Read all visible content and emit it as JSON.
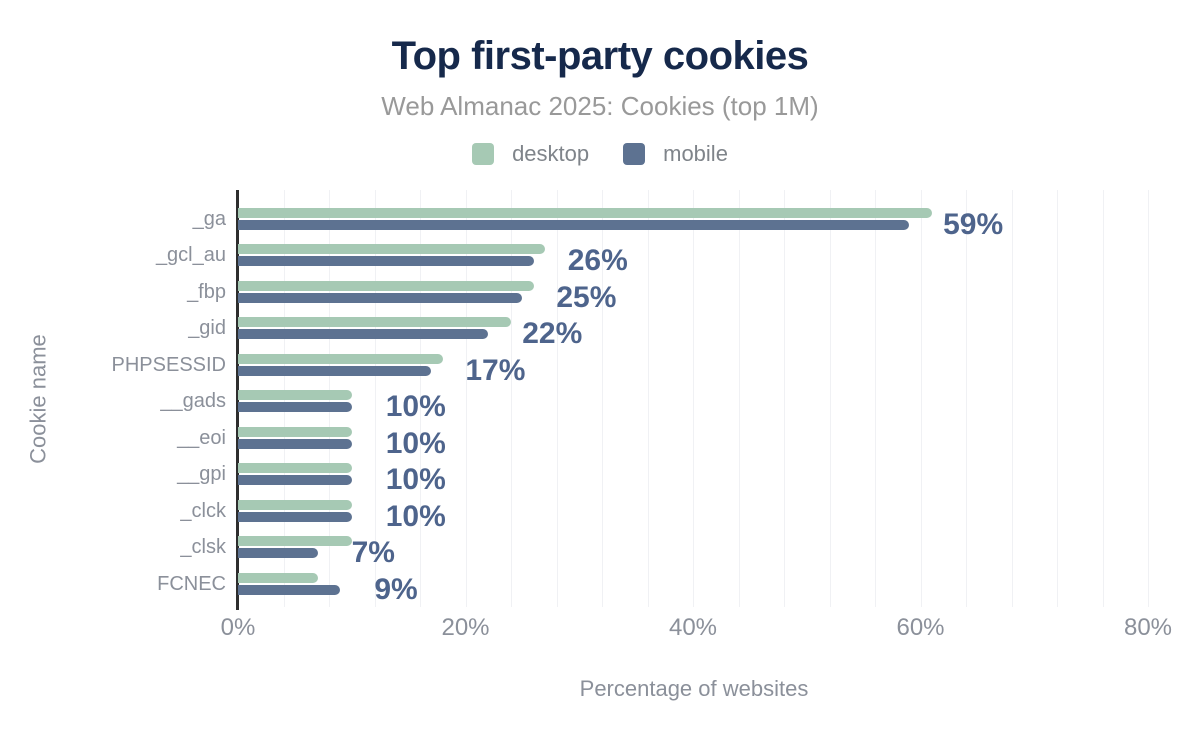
{
  "chart_data": {
    "type": "bar",
    "orientation": "horizontal",
    "title": "Top first-party cookies",
    "subtitle": "Web Almanac 2025: Cookies (top 1M)",
    "xlabel": "Percentage of websites",
    "ylabel": "Cookie name",
    "categories": [
      "_ga",
      "_gcl_au",
      "_fbp",
      "_gid",
      "PHPSESSID",
      "__gads",
      "__eoi",
      "__gpi",
      "_clck",
      "_clsk",
      "FCNEC"
    ],
    "series": [
      {
        "name": "desktop",
        "color": "#a6c9b4",
        "values": [
          61,
          27,
          26,
          24,
          18,
          10,
          10,
          10,
          10,
          10,
          7
        ]
      },
      {
        "name": "mobile",
        "color": "#5d7291",
        "values": [
          59,
          26,
          25,
          22,
          17,
          10,
          10,
          10,
          10,
          7,
          9
        ]
      }
    ],
    "data_labels": [
      "59%",
      "26%",
      "25%",
      "22%",
      "17%",
      "10%",
      "10%",
      "10%",
      "10%",
      "7%",
      "9%"
    ],
    "x_ticks": [
      {
        "value": 0,
        "label": "0%"
      },
      {
        "value": 20,
        "label": "20%"
      },
      {
        "value": 40,
        "label": "40%"
      },
      {
        "value": 60,
        "label": "60%"
      },
      {
        "value": 80,
        "label": "80%"
      }
    ],
    "xlim": [
      0,
      81.8
    ],
    "minor_grid_step": 4,
    "grid": "vertical-minor",
    "legend_position": "top"
  },
  "colors": {
    "title": "#16294b",
    "subtitle": "#999999",
    "axis_text": "#8b909a",
    "axis_line": "#2e2e2e",
    "gridline": "#f0f1f4",
    "desktop_bar": "#a6c9b4",
    "mobile_bar": "#5d7291",
    "value_label": "#4e648c"
  }
}
